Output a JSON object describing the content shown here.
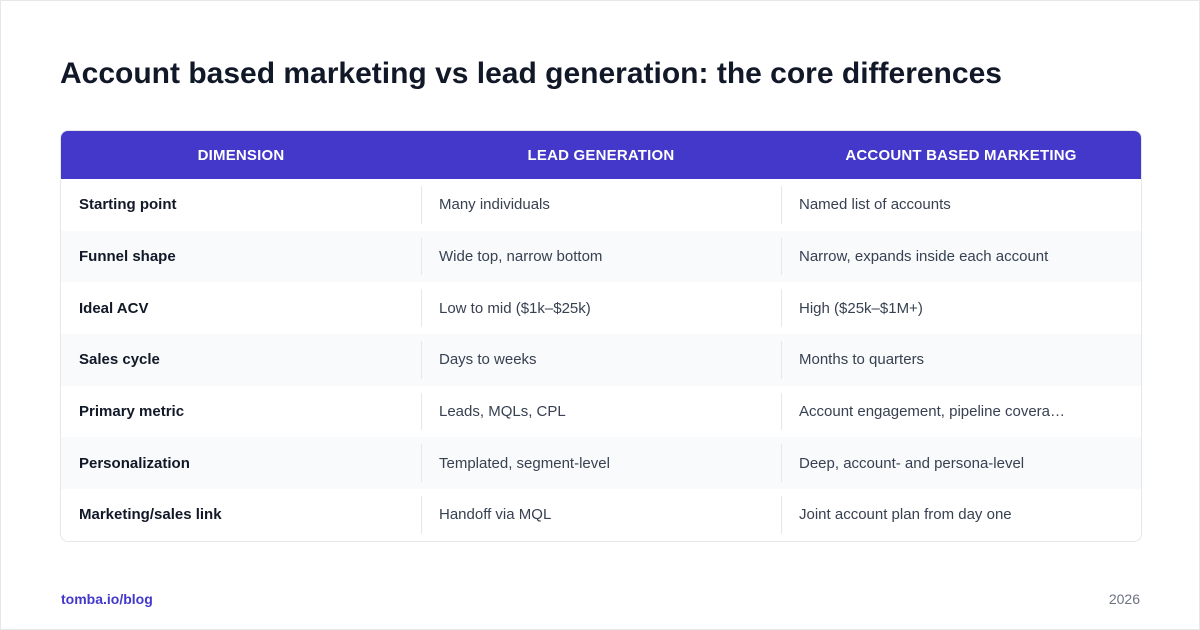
{
  "title": "Account based marketing vs lead generation: the core differences",
  "table": {
    "headers": [
      "DIMENSION",
      "LEAD GENERATION",
      "ACCOUNT BASED MARKETING"
    ],
    "rows": [
      [
        "Starting point",
        "Many individuals",
        "Named list of accounts"
      ],
      [
        "Funnel shape",
        "Wide top, narrow bottom",
        "Narrow, expands inside each account"
      ],
      [
        "Ideal ACV",
        "Low to mid ($1k–$25k)",
        "High ($25k–$1M+)"
      ],
      [
        "Sales cycle",
        "Days to weeks",
        "Months to quarters"
      ],
      [
        "Primary metric",
        "Leads, MQLs, CPL",
        "Account engagement, pipeline covera…"
      ],
      [
        "Personalization",
        "Templated, segment-level",
        "Deep, account- and persona-level"
      ],
      [
        "Marketing/sales link",
        "Handoff via MQL",
        "Joint account plan from day one"
      ]
    ]
  },
  "footer": {
    "link": "tomba.io/blog",
    "year": "2026"
  },
  "colors": {
    "accent": "#4338ca",
    "title": "#111827",
    "text": "#374151",
    "alt_row": "#f8fafc",
    "border": "#e5e7eb"
  }
}
